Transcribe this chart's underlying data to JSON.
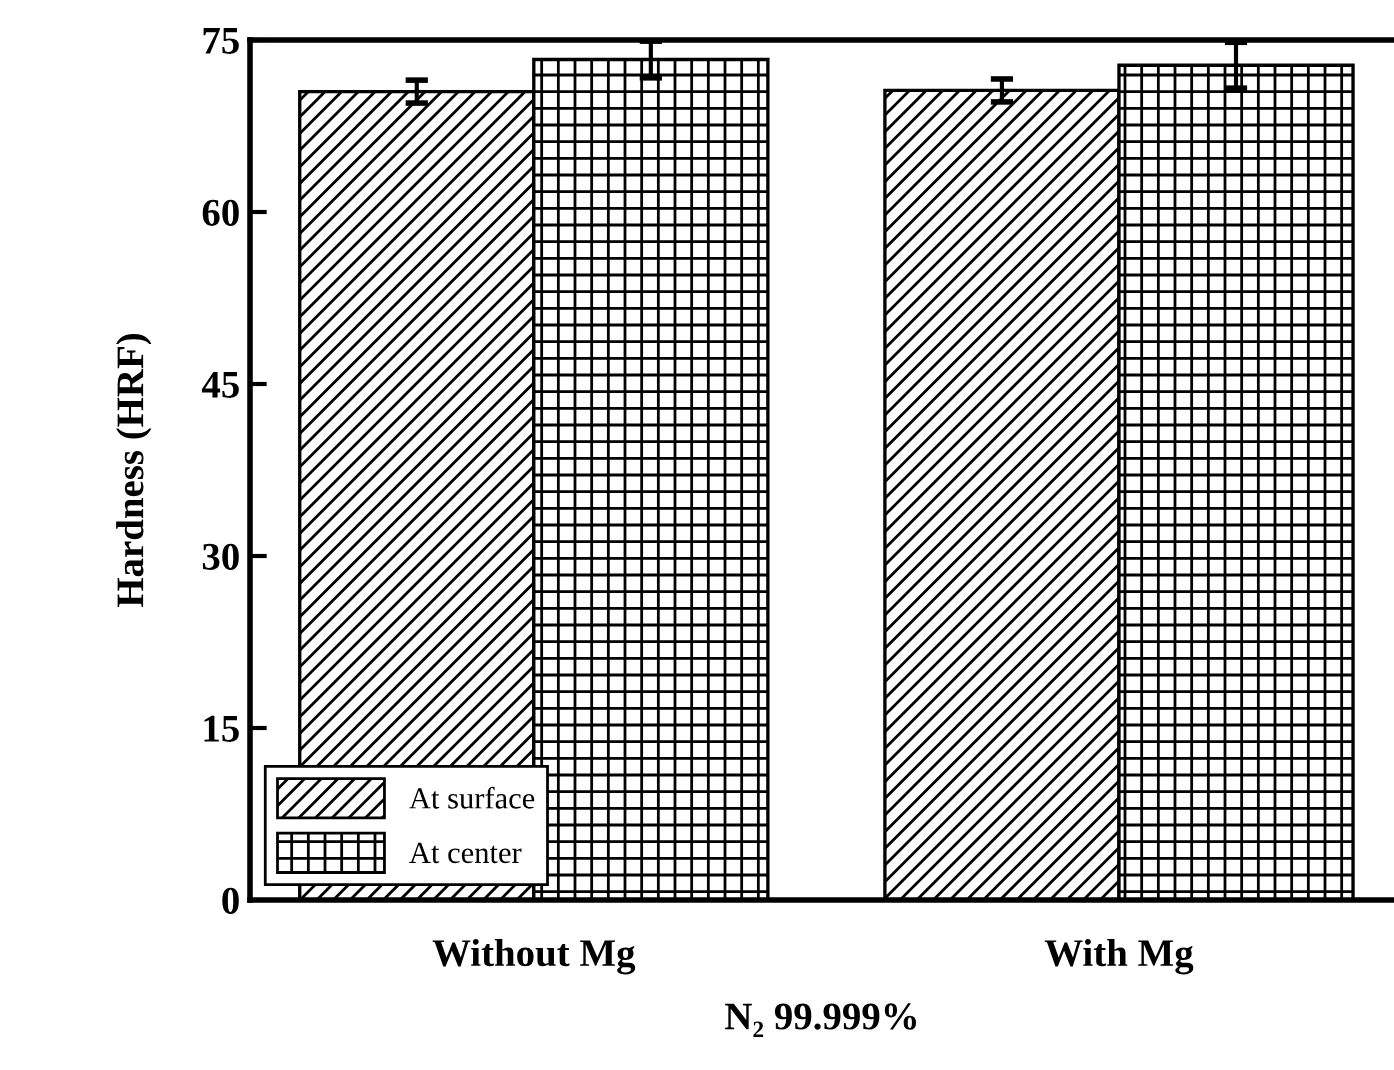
{
  "chart_data": {
    "type": "bar",
    "xlabel": "N₂ 99.999%",
    "ylabel": "Hardness (HRF)",
    "categories": [
      "Without Mg",
      "With Mg"
    ],
    "series": [
      {
        "name": "At surface",
        "color": "#000000",
        "values": [
          70.5,
          70.6
        ],
        "errors": [
          1.0,
          1.0
        ]
      },
      {
        "name": "At center",
        "color": "#000000",
        "values": [
          73.3,
          72.8
        ],
        "errors": [
          1.6,
          2.0
        ]
      }
    ],
    "ylim": [
      0,
      75
    ],
    "yticks": [
      0,
      15,
      30,
      45,
      60,
      75
    ],
    "grid": false,
    "legend": "bottom left"
  }
}
